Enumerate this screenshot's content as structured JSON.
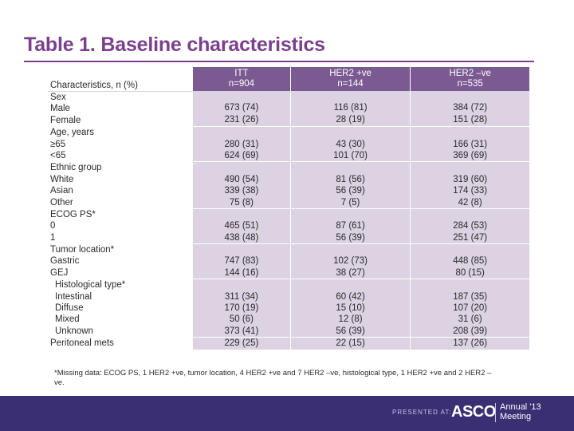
{
  "title": "Table 1. Baseline characteristics",
  "table": {
    "header": {
      "label": "Characteristics, n (%)",
      "columns": [
        {
          "name": "ITT",
          "n": "n=904"
        },
        {
          "name": "HER2 +ve",
          "n": "n=144"
        },
        {
          "name": "HER2 –ve",
          "n": "n=535"
        }
      ]
    },
    "groups": [
      {
        "lines": [
          "Sex",
          "Male",
          "Female"
        ],
        "itt": [
          "",
          "673 (74)",
          "231 (26)"
        ],
        "pos": [
          "",
          "116 (81)",
          "28 (19)"
        ],
        "neg": [
          "",
          "384 (72)",
          "151 (28)"
        ]
      },
      {
        "lines": [
          "Age, years",
          "≥65",
          "<65"
        ],
        "itt": [
          "",
          "280 (31)",
          "624 (69)"
        ],
        "pos": [
          "",
          "43 (30)",
          "101 (70)"
        ],
        "neg": [
          "",
          "166 (31)",
          "369 (69)"
        ]
      },
      {
        "lines": [
          "Ethnic group",
          "White",
          "Asian",
          "Other"
        ],
        "itt": [
          "",
          "490 (54)",
          "339 (38)",
          "75 (8)"
        ],
        "pos": [
          "",
          "81 (56)",
          "56 (39)",
          "7 (5)"
        ],
        "neg": [
          "",
          "319 (60)",
          "174 (33)",
          "42 (8)"
        ]
      },
      {
        "lines": [
          "ECOG PS*",
          "0",
          "1"
        ],
        "itt": [
          "",
          "465 (51)",
          "438 (48)"
        ],
        "pos": [
          "",
          "87 (61)",
          "56 (39)"
        ],
        "neg": [
          "",
          "284 (53)",
          "251 (47)"
        ]
      },
      {
        "lines": [
          "Tumor location*",
          "Gastric",
          "GEJ"
        ],
        "itt": [
          "",
          "747 (83)",
          "144 (16)"
        ],
        "pos": [
          "",
          "102 (73)",
          "38 (27)"
        ],
        "neg": [
          "",
          "448 (85)",
          "80 (15)"
        ]
      },
      {
        "lines": [
          "Histological type*",
          "Intestinal",
          "Diffuse",
          "Mixed",
          "Unknown"
        ],
        "indent": true,
        "itt": [
          "",
          "311 (34)",
          "170 (19)",
          "50 (6)",
          "373 (41)"
        ],
        "pos": [
          "",
          "60 (42)",
          "15 (10)",
          "12 (8)",
          "56 (39)"
        ],
        "neg": [
          "",
          "187 (35)",
          "107 (20)",
          "31 (6)",
          "208 (39)"
        ]
      },
      {
        "lines": [
          "Peritoneal mets"
        ],
        "itt": [
          "229 (25)"
        ],
        "pos": [
          "22 (15)"
        ],
        "neg": [
          "137 (26)"
        ]
      }
    ]
  },
  "footnote": "*Missing data: ECOG PS, 1 HER2 +ve, tumor location, 4 HER2 +ve and 7 HER2 –ve, histological type, 1 HER2 +ve and 2 HER2 –ve.",
  "footer": {
    "presented": "PRESENTED AT:",
    "logo": "ASCO",
    "meeting_line1": "Annual '13",
    "meeting_line2": "Meeting"
  },
  "colors": {
    "title": "#7b3f8c",
    "header_bg": "#7a5a91",
    "cell_bg": "#dcd2e2",
    "footer_bg": "#3a2f73"
  }
}
